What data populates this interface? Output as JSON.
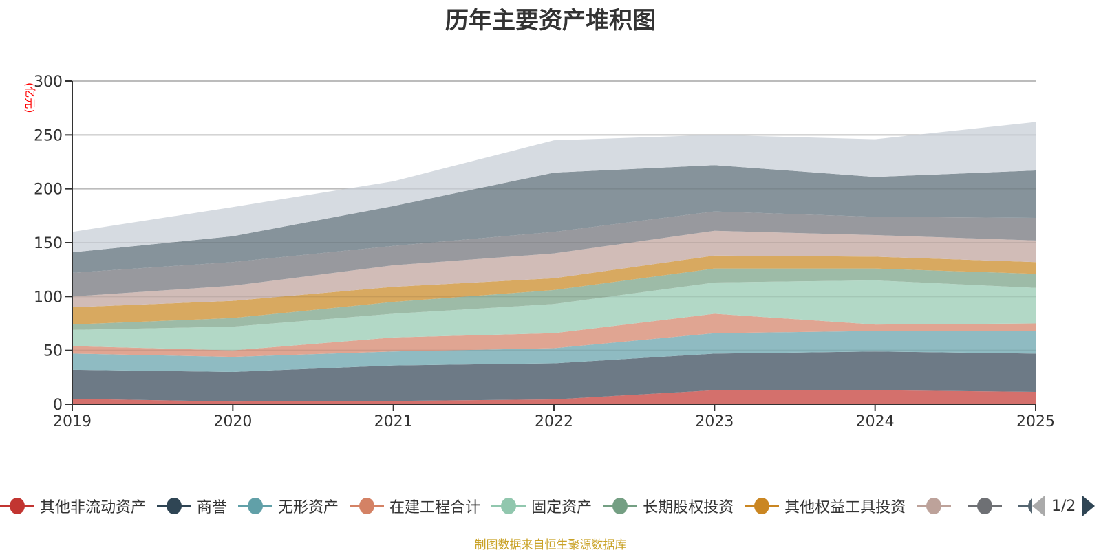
{
  "title": "历年主要资产堆积图",
  "source_note": "制图数据来自恒生聚源数据库",
  "legend_pager": {
    "text": "1/2",
    "prev_icon": "triangle-left-icon",
    "next_icon": "triangle-right-icon"
  },
  "chart_data": {
    "type": "area",
    "stacked": true,
    "title": "历年主要资产堆积图",
    "xlabel": "",
    "ylabel": "(亿元)",
    "x": [
      "2019",
      "2020",
      "2021",
      "2022",
      "2023",
      "2024",
      "2025"
    ],
    "ylim": [
      0,
      300
    ],
    "yticks": [
      0,
      50,
      100,
      150,
      200,
      250,
      300
    ],
    "grid": true,
    "legend_position": "bottom",
    "series": [
      {
        "name": "其他非流动资产",
        "color": "#c23531",
        "fill": "#d4706c",
        "values": [
          5,
          2.5,
          3,
          4.5,
          13,
          13,
          11.5
        ]
      },
      {
        "name": "商誉",
        "color": "#2f4554",
        "fill": "#6d7a86",
        "values": [
          27,
          27.5,
          33,
          33.5,
          34,
          36,
          35.5
        ]
      },
      {
        "name": "无形资产",
        "color": "#61a0a8",
        "fill": "#8fbbc2",
        "values": [
          15,
          14,
          13,
          14,
          19,
          19,
          21
        ]
      },
      {
        "name": "在建工程合计",
        "color": "#d48265",
        "fill": "#e0a592",
        "values": [
          7,
          6,
          13,
          14,
          18,
          6,
          7
        ]
      },
      {
        "name": "固定资产",
        "color": "#91c7ae",
        "fill": "#b2d8c6",
        "values": [
          15,
          22,
          22,
          27,
          29,
          41,
          33
        ]
      },
      {
        "name": "长期股权投资",
        "color": "#749f83",
        "fill": "#9dbba7",
        "values": [
          5,
          8,
          11,
          13,
          13,
          11,
          13
        ]
      },
      {
        "name": "其他权益工具投资",
        "color": "#ca8622",
        "fill": "#d8a960",
        "values": [
          16,
          16,
          14,
          11,
          12,
          11,
          11
        ]
      },
      {
        "name": "",
        "color": "#bda29a",
        "fill": "#d1bcb7",
        "values": [
          10,
          14,
          20,
          23,
          23,
          20,
          20
        ]
      },
      {
        "name": "",
        "color": "#6e7074",
        "fill": "#98999e",
        "values": [
          22,
          22,
          18,
          20,
          18,
          17,
          21
        ]
      },
      {
        "name": "",
        "color": "#546570",
        "fill": "#86939b",
        "values": [
          19,
          24,
          37,
          55,
          43,
          37,
          44
        ]
      },
      {
        "name": "",
        "color": "#c4ccd3",
        "fill": "#d6dbe1",
        "values": [
          19,
          27,
          23,
          30,
          28,
          35,
          45
        ]
      }
    ]
  }
}
